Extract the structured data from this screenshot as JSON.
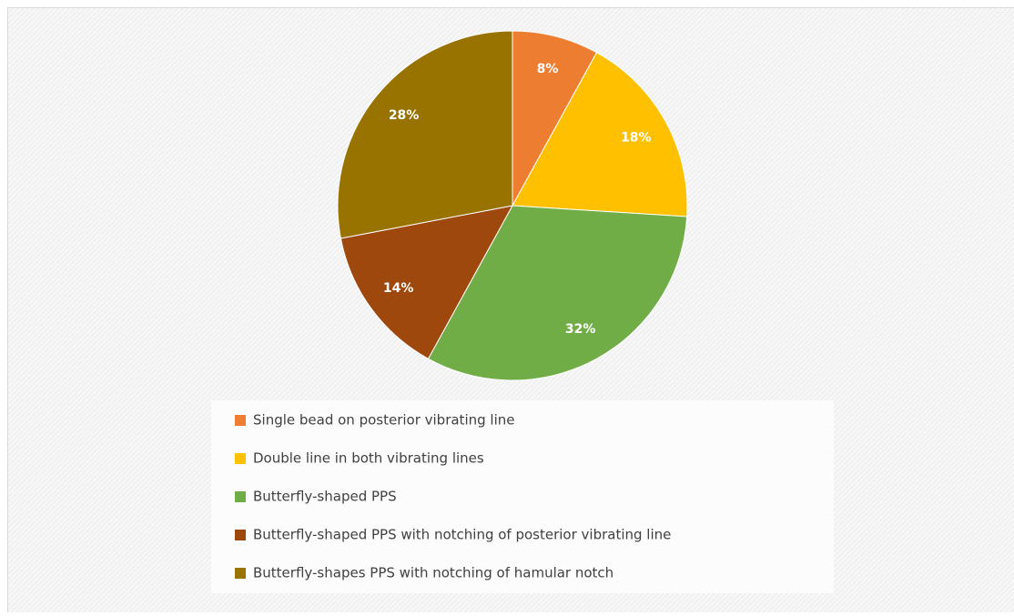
{
  "chart_data": {
    "type": "pie",
    "categories": [
      "Single bead on posterior vibrating line",
      "Double line in both vibrating lines",
      "Butterfly-shaped PPS",
      "Butterfly-shaped PPS with notching of posterior vibrating line",
      "Butterfly-shapes PPS with notching of hamular notch"
    ],
    "values": [
      8,
      18,
      32,
      14,
      28
    ],
    "value_labels": [
      "8%",
      "18%",
      "32%",
      "14%",
      "28%"
    ],
    "colors": [
      "#ed7d31",
      "#ffc000",
      "#70ad47",
      "#9e480e",
      "#997300"
    ],
    "legend": "bottom"
  }
}
